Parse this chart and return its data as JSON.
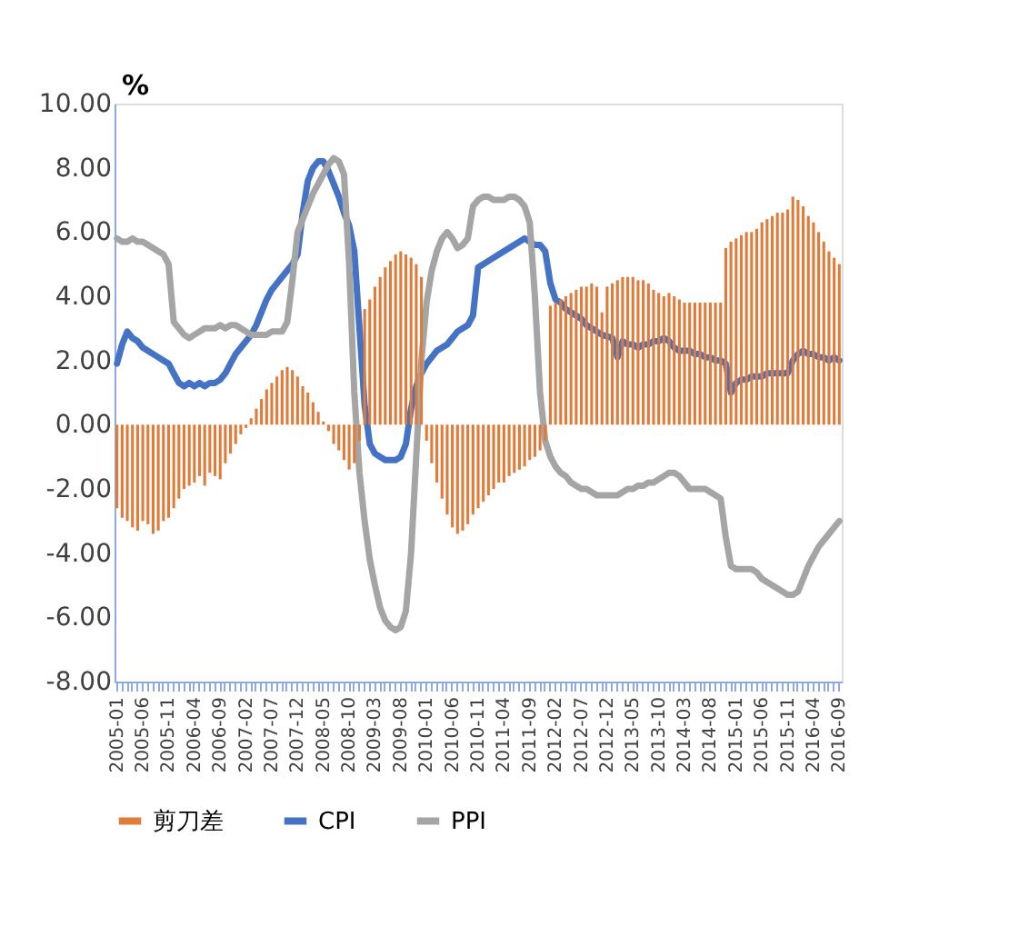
{
  "chart_data": {
    "type": "bar",
    "ylabel": "%",
    "categories": [
      "2005-01",
      null,
      null,
      null,
      null,
      "2005-06",
      null,
      null,
      null,
      null,
      "2005-11",
      null,
      null,
      null,
      null,
      "2006-04",
      null,
      null,
      null,
      null,
      "2006-09",
      null,
      null,
      null,
      null,
      "2007-02",
      null,
      null,
      null,
      null,
      "2007-07",
      null,
      null,
      null,
      null,
      "2007-12",
      null,
      null,
      null,
      null,
      "2008-05",
      null,
      null,
      null,
      null,
      "2008-10",
      null,
      null,
      null,
      null,
      "2009-03",
      null,
      null,
      null,
      null,
      "2009-08",
      null,
      null,
      null,
      null,
      "2010-01",
      null,
      null,
      null,
      null,
      "2010-06",
      null,
      null,
      null,
      null,
      "2010-11",
      null,
      null,
      null,
      null,
      "2011-04",
      null,
      null,
      null,
      null,
      "2011-09",
      null,
      null,
      null,
      null,
      "2012-02",
      null,
      null,
      null,
      null,
      "2012-07",
      null,
      null,
      null,
      null,
      "2012-12",
      null,
      null,
      null,
      null,
      "2013-05",
      null,
      null,
      null,
      null,
      "2013-10",
      null,
      null,
      null,
      null,
      "2014-03",
      null,
      null,
      null,
      null,
      "2014-08",
      null,
      null,
      null,
      null,
      "2015-01",
      null,
      null,
      null,
      null,
      "2015-06",
      null,
      null,
      null,
      null,
      "2015-11",
      null,
      null,
      null,
      null,
      "2016-04",
      null,
      null,
      null,
      null,
      "2016-09"
    ],
    "series": [
      {
        "name": "剪刀差",
        "color": "#e07b39",
        "values": [
          -2.6,
          -2.9,
          -3.0,
          -3.2,
          -3.3,
          -3.0,
          -3.1,
          -3.4,
          -3.3,
          -3.0,
          -2.9,
          -2.6,
          -2.3,
          -2.0,
          -1.9,
          -1.8,
          -1.6,
          -1.9,
          -1.5,
          -1.6,
          -1.7,
          -1.2,
          -0.9,
          -0.6,
          -0.3,
          -0.1,
          0.2,
          0.5,
          0.8,
          1.1,
          1.3,
          1.5,
          1.7,
          1.8,
          1.7,
          1.5,
          1.2,
          1.0,
          0.7,
          0.4,
          0.1,
          -0.2,
          -0.6,
          -0.8,
          -1.1,
          -1.4,
          -1.2,
          -0.5,
          3.6,
          3.9,
          4.3,
          4.6,
          4.9,
          5.1,
          5.3,
          5.4,
          5.3,
          5.2,
          5.0,
          4.6,
          -0.5,
          -1.2,
          -1.8,
          -2.3,
          -2.8,
          -3.2,
          -3.4,
          -3.3,
          -3.1,
          -2.8,
          -2.6,
          -2.4,
          -2.2,
          -2.0,
          -1.8,
          -1.8,
          -1.6,
          -1.5,
          -1.4,
          -1.3,
          -1.1,
          -1.0,
          -0.8,
          -0.5,
          3.7,
          3.8,
          3.9,
          4.0,
          4.1,
          4.2,
          4.3,
          4.3,
          4.4,
          4.3,
          3.5,
          4.3,
          4.4,
          4.5,
          4.6,
          4.6,
          4.6,
          4.5,
          4.5,
          4.4,
          4.2,
          4.1,
          4.0,
          4.1,
          4.0,
          3.9,
          3.8,
          3.8,
          3.8,
          3.8,
          3.8,
          3.8,
          3.8,
          3.8,
          5.5,
          5.7,
          5.8,
          5.9,
          6.0,
          6.0,
          6.1,
          6.3,
          6.4,
          6.5,
          6.6,
          6.6,
          6.7,
          7.1,
          7.0,
          6.8,
          6.5,
          6.3,
          6.0,
          5.7,
          5.4,
          5.2,
          5.0
        ]
      },
      {
        "name": "CPI",
        "type": "line",
        "color": "#4472c4",
        "values": [
          1.9,
          2.5,
          2.9,
          2.7,
          2.6,
          2.4,
          2.3,
          2.2,
          2.1,
          2.0,
          1.9,
          1.6,
          1.3,
          1.2,
          1.3,
          1.2,
          1.3,
          1.2,
          1.3,
          1.3,
          1.4,
          1.6,
          1.9,
          2.2,
          2.4,
          2.6,
          2.8,
          3.1,
          3.5,
          3.9,
          4.2,
          4.4,
          4.6,
          4.8,
          5.0,
          5.3,
          6.6,
          7.6,
          8.0,
          8.2,
          8.2,
          7.9,
          7.5,
          7.1,
          6.6,
          6.2,
          5.4,
          3.0,
          0.6,
          -0.6,
          -0.9,
          -1.0,
          -1.1,
          -1.1,
          -1.1,
          -1.0,
          -0.6,
          0.5,
          1.2,
          1.6,
          1.9,
          2.1,
          2.3,
          2.4,
          2.5,
          2.7,
          2.9,
          3.0,
          3.1,
          3.4,
          4.9,
          5.0,
          5.1,
          5.2,
          5.3,
          5.4,
          5.5,
          5.6,
          5.7,
          5.8,
          5.7,
          5.6,
          5.6,
          5.4,
          4.4,
          3.9,
          3.8,
          3.6,
          3.5,
          3.4,
          3.3,
          3.1,
          3.0,
          2.9,
          2.8,
          2.75,
          2.7,
          2.1,
          2.6,
          2.5,
          2.5,
          2.4,
          2.5,
          2.5,
          2.6,
          2.6,
          2.7,
          2.6,
          2.4,
          2.3,
          2.3,
          2.3,
          2.2,
          2.2,
          2.1,
          2.1,
          2.0,
          2.0,
          1.9,
          1.0,
          1.3,
          1.4,
          1.4,
          1.5,
          1.5,
          1.5,
          1.6,
          1.6,
          1.6,
          1.6,
          1.6,
          2.0,
          2.2,
          2.3,
          2.2,
          2.2,
          2.1,
          2.1,
          2.0,
          2.1,
          2.0
        ]
      },
      {
        "name": "PPI",
        "type": "line",
        "color": "#a5a5a5",
        "values": [
          5.8,
          5.7,
          5.7,
          5.8,
          5.7,
          5.7,
          5.6,
          5.5,
          5.4,
          5.3,
          5.0,
          3.2,
          3.0,
          2.8,
          2.7,
          2.8,
          2.9,
          3.0,
          3.0,
          3.0,
          3.1,
          3.0,
          3.1,
          3.1,
          3.0,
          2.9,
          2.8,
          2.8,
          2.8,
          2.8,
          2.9,
          2.9,
          2.9,
          3.2,
          4.5,
          6.0,
          6.4,
          6.8,
          7.2,
          7.5,
          7.8,
          8.1,
          8.3,
          8.2,
          7.8,
          5.0,
          1.0,
          -1.5,
          -3.0,
          -4.2,
          -5.0,
          -5.7,
          -6.1,
          -6.3,
          -6.4,
          -6.3,
          -5.8,
          -4.0,
          -1.0,
          2.0,
          3.8,
          4.8,
          5.4,
          5.8,
          6.0,
          5.8,
          5.5,
          5.6,
          5.8,
          6.8,
          7.0,
          7.1,
          7.1,
          7.0,
          7.0,
          7.0,
          7.1,
          7.1,
          7.0,
          6.8,
          6.3,
          4.0,
          1.0,
          -0.5,
          -1.0,
          -1.3,
          -1.5,
          -1.6,
          -1.8,
          -1.9,
          -2.0,
          -2.0,
          -2.1,
          -2.2,
          -2.2,
          -2.2,
          -2.2,
          -2.2,
          -2.1,
          -2.0,
          -2.0,
          -1.9,
          -1.9,
          -1.8,
          -1.8,
          -1.7,
          -1.6,
          -1.5,
          -1.5,
          -1.6,
          -1.8,
          -2.0,
          -2.0,
          -2.0,
          -2.0,
          -2.1,
          -2.2,
          -2.3,
          -3.5,
          -4.4,
          -4.5,
          -4.5,
          -4.5,
          -4.5,
          -4.6,
          -4.8,
          -4.9,
          -5.0,
          -5.1,
          -5.2,
          -5.3,
          -5.3,
          -5.2,
          -4.8,
          -4.4,
          -4.1,
          -3.8,
          -3.6,
          -3.4,
          -3.2,
          -3.0
        ]
      }
    ],
    "ylim": [
      -8,
      10
    ],
    "yticks": [
      {
        "value": -8,
        "label": "-8.00"
      },
      {
        "value": -6,
        "label": "-6.00"
      },
      {
        "value": -4,
        "label": "-4.00"
      },
      {
        "value": -2,
        "label": "-2.00"
      },
      {
        "value": 0,
        "label": "0.00"
      },
      {
        "value": 2,
        "label": "2.00"
      },
      {
        "value": 4,
        "label": "4.00"
      },
      {
        "value": 6,
        "label": "6.00"
      },
      {
        "value": 8,
        "label": "8.00"
      },
      {
        "value": 10,
        "label": "10.00"
      }
    ],
    "grid": false,
    "legend": "bottom"
  }
}
